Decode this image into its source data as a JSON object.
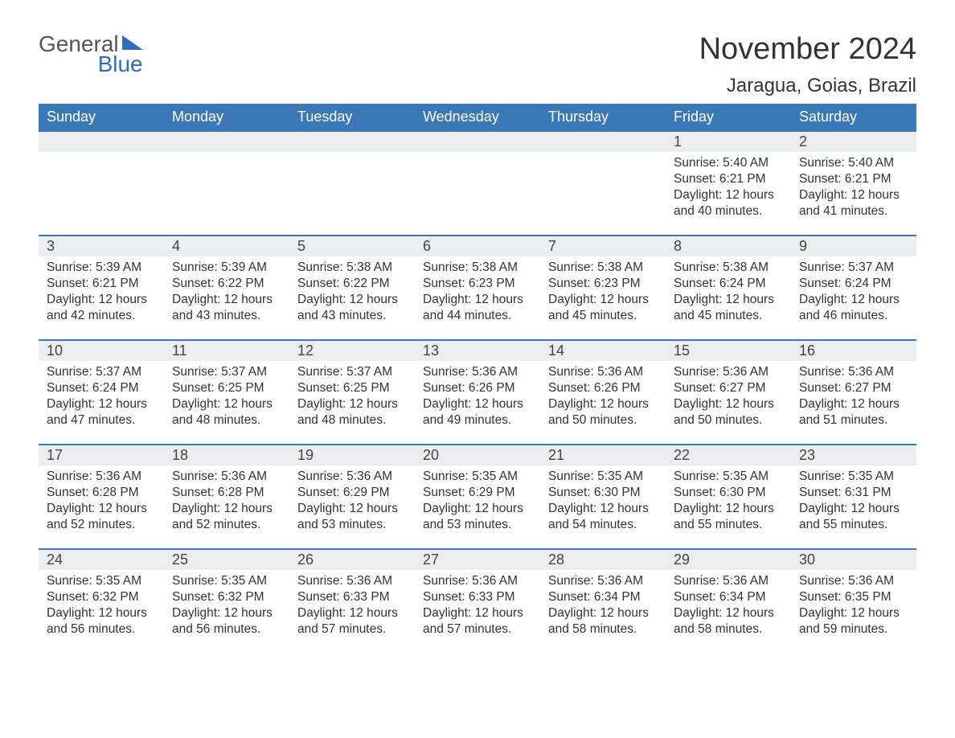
{
  "logo": {
    "general": "General",
    "blue": "Blue"
  },
  "title": "November 2024",
  "location": "Jaragua, Goias, Brazil",
  "colors": {
    "header_bg": "#3b78b8",
    "header_text": "#ffffff",
    "row_border": "#3b78b8",
    "daynum_bg": "#ecedee",
    "text": "#333333",
    "logo_blue": "#2d6fb6",
    "background": "#ffffff"
  },
  "typography": {
    "title_fontsize": 38,
    "location_fontsize": 24,
    "dayhead_fontsize": 18,
    "daynum_fontsize": 18,
    "body_fontsize": 15.5
  },
  "calendar": {
    "type": "table",
    "columns": [
      "Sunday",
      "Monday",
      "Tuesday",
      "Wednesday",
      "Thursday",
      "Friday",
      "Saturday"
    ],
    "weeks": [
      [
        null,
        null,
        null,
        null,
        null,
        {
          "n": "1",
          "sunrise": "Sunrise: 5:40 AM",
          "sunset": "Sunset: 6:21 PM",
          "daylight": "Daylight: 12 hours and 40 minutes."
        },
        {
          "n": "2",
          "sunrise": "Sunrise: 5:40 AM",
          "sunset": "Sunset: 6:21 PM",
          "daylight": "Daylight: 12 hours and 41 minutes."
        }
      ],
      [
        {
          "n": "3",
          "sunrise": "Sunrise: 5:39 AM",
          "sunset": "Sunset: 6:21 PM",
          "daylight": "Daylight: 12 hours and 42 minutes."
        },
        {
          "n": "4",
          "sunrise": "Sunrise: 5:39 AM",
          "sunset": "Sunset: 6:22 PM",
          "daylight": "Daylight: 12 hours and 43 minutes."
        },
        {
          "n": "5",
          "sunrise": "Sunrise: 5:38 AM",
          "sunset": "Sunset: 6:22 PM",
          "daylight": "Daylight: 12 hours and 43 minutes."
        },
        {
          "n": "6",
          "sunrise": "Sunrise: 5:38 AM",
          "sunset": "Sunset: 6:23 PM",
          "daylight": "Daylight: 12 hours and 44 minutes."
        },
        {
          "n": "7",
          "sunrise": "Sunrise: 5:38 AM",
          "sunset": "Sunset: 6:23 PM",
          "daylight": "Daylight: 12 hours and 45 minutes."
        },
        {
          "n": "8",
          "sunrise": "Sunrise: 5:38 AM",
          "sunset": "Sunset: 6:24 PM",
          "daylight": "Daylight: 12 hours and 45 minutes."
        },
        {
          "n": "9",
          "sunrise": "Sunrise: 5:37 AM",
          "sunset": "Sunset: 6:24 PM",
          "daylight": "Daylight: 12 hours and 46 minutes."
        }
      ],
      [
        {
          "n": "10",
          "sunrise": "Sunrise: 5:37 AM",
          "sunset": "Sunset: 6:24 PM",
          "daylight": "Daylight: 12 hours and 47 minutes."
        },
        {
          "n": "11",
          "sunrise": "Sunrise: 5:37 AM",
          "sunset": "Sunset: 6:25 PM",
          "daylight": "Daylight: 12 hours and 48 minutes."
        },
        {
          "n": "12",
          "sunrise": "Sunrise: 5:37 AM",
          "sunset": "Sunset: 6:25 PM",
          "daylight": "Daylight: 12 hours and 48 minutes."
        },
        {
          "n": "13",
          "sunrise": "Sunrise: 5:36 AM",
          "sunset": "Sunset: 6:26 PM",
          "daylight": "Daylight: 12 hours and 49 minutes."
        },
        {
          "n": "14",
          "sunrise": "Sunrise: 5:36 AM",
          "sunset": "Sunset: 6:26 PM",
          "daylight": "Daylight: 12 hours and 50 minutes."
        },
        {
          "n": "15",
          "sunrise": "Sunrise: 5:36 AM",
          "sunset": "Sunset: 6:27 PM",
          "daylight": "Daylight: 12 hours and 50 minutes."
        },
        {
          "n": "16",
          "sunrise": "Sunrise: 5:36 AM",
          "sunset": "Sunset: 6:27 PM",
          "daylight": "Daylight: 12 hours and 51 minutes."
        }
      ],
      [
        {
          "n": "17",
          "sunrise": "Sunrise: 5:36 AM",
          "sunset": "Sunset: 6:28 PM",
          "daylight": "Daylight: 12 hours and 52 minutes."
        },
        {
          "n": "18",
          "sunrise": "Sunrise: 5:36 AM",
          "sunset": "Sunset: 6:28 PM",
          "daylight": "Daylight: 12 hours and 52 minutes."
        },
        {
          "n": "19",
          "sunrise": "Sunrise: 5:36 AM",
          "sunset": "Sunset: 6:29 PM",
          "daylight": "Daylight: 12 hours and 53 minutes."
        },
        {
          "n": "20",
          "sunrise": "Sunrise: 5:35 AM",
          "sunset": "Sunset: 6:29 PM",
          "daylight": "Daylight: 12 hours and 53 minutes."
        },
        {
          "n": "21",
          "sunrise": "Sunrise: 5:35 AM",
          "sunset": "Sunset: 6:30 PM",
          "daylight": "Daylight: 12 hours and 54 minutes."
        },
        {
          "n": "22",
          "sunrise": "Sunrise: 5:35 AM",
          "sunset": "Sunset: 6:30 PM",
          "daylight": "Daylight: 12 hours and 55 minutes."
        },
        {
          "n": "23",
          "sunrise": "Sunrise: 5:35 AM",
          "sunset": "Sunset: 6:31 PM",
          "daylight": "Daylight: 12 hours and 55 minutes."
        }
      ],
      [
        {
          "n": "24",
          "sunrise": "Sunrise: 5:35 AM",
          "sunset": "Sunset: 6:32 PM",
          "daylight": "Daylight: 12 hours and 56 minutes."
        },
        {
          "n": "25",
          "sunrise": "Sunrise: 5:35 AM",
          "sunset": "Sunset: 6:32 PM",
          "daylight": "Daylight: 12 hours and 56 minutes."
        },
        {
          "n": "26",
          "sunrise": "Sunrise: 5:36 AM",
          "sunset": "Sunset: 6:33 PM",
          "daylight": "Daylight: 12 hours and 57 minutes."
        },
        {
          "n": "27",
          "sunrise": "Sunrise: 5:36 AM",
          "sunset": "Sunset: 6:33 PM",
          "daylight": "Daylight: 12 hours and 57 minutes."
        },
        {
          "n": "28",
          "sunrise": "Sunrise: 5:36 AM",
          "sunset": "Sunset: 6:34 PM",
          "daylight": "Daylight: 12 hours and 58 minutes."
        },
        {
          "n": "29",
          "sunrise": "Sunrise: 5:36 AM",
          "sunset": "Sunset: 6:34 PM",
          "daylight": "Daylight: 12 hours and 58 minutes."
        },
        {
          "n": "30",
          "sunrise": "Sunrise: 5:36 AM",
          "sunset": "Sunset: 6:35 PM",
          "daylight": "Daylight: 12 hours and 59 minutes."
        }
      ]
    ]
  }
}
